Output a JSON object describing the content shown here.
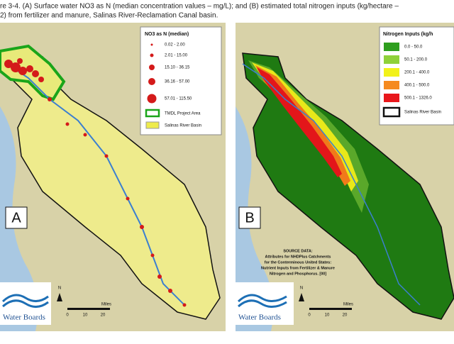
{
  "caption": {
    "line1": "re 3-4. (A) Surface water NO3 as N (median concentration values – mg/L); and (B) estimated total nitrogen inputs (kg/hectare –",
    "line2": "2) from fertilizer and manure, Salinas River-Reclamation Canal basin."
  },
  "panel_a": {
    "label": "A",
    "legend": {
      "title": "NO3 as N (median)",
      "items": [
        "0.02 - 2.00",
        "2.01 - 15.00",
        "15.10 - 36.15",
        "36.16 - 57.00",
        "57.01 - 115.50",
        "TMDL Project Area",
        "Salinas River Basin"
      ]
    },
    "logo": "Water Boards",
    "north": "N",
    "scale": {
      "unit": "Miles",
      "ticks": [
        "0",
        "10",
        "20"
      ]
    }
  },
  "panel_b": {
    "label": "B",
    "legend": {
      "title": "Nitrogen Inputs (kg/h",
      "items": [
        "0.0 - 50.0",
        "50.1 - 200.0",
        "200.1 - 400.0",
        "400.1 - 500.0",
        "500.1 - 1326.0",
        "Salinas River Basin"
      ]
    },
    "source": [
      "SOURCE DATA:",
      "Attributes for NHDPlus Catchments",
      "for the Conterminous United States:",
      "Nutrient Inputs from Fertilizer & Manure",
      "Nitrogen and Phosphorus. [00]"
    ],
    "logo": "Water Boards",
    "north": "N",
    "scale": {
      "unit": "Miles",
      "ticks": [
        "0",
        "10",
        "20"
      ]
    }
  }
}
